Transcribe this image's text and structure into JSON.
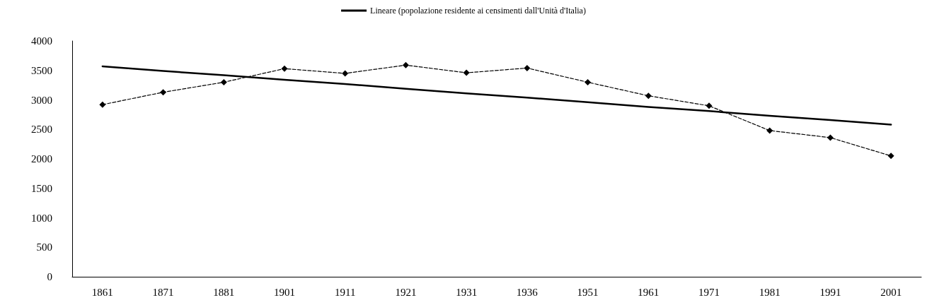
{
  "chart_data": {
    "type": "line",
    "categories": [
      "1861",
      "1871",
      "1881",
      "1901",
      "1911",
      "1921",
      "1931",
      "1936",
      "1951",
      "1961",
      "1971",
      "1981",
      "1991",
      "2001"
    ],
    "series": [
      {
        "color": "#000000",
        "marker": "diamond",
        "line_style": "dashed",
        "values": [
          2920,
          3130,
          3300,
          3530,
          3450,
          3590,
          3460,
          3540,
          3300,
          3070,
          2900,
          2480,
          2360,
          2050
        ]
      },
      {
        "name": "Lineare (popolazione residente ai censimenti dall'Unità d'Italia)",
        "color": "#000000",
        "marker": "none",
        "line_style": "solid",
        "values": [
          3570,
          3490,
          3420,
          3340,
          3270,
          3190,
          3110,
          3040,
          2960,
          2880,
          2810,
          2730,
          2660,
          2580
        ]
      }
    ],
    "ylim": [
      0,
      4000
    ],
    "yticks": [
      0,
      500,
      1000,
      1500,
      2000,
      2500,
      3000,
      3500,
      4000
    ],
    "grid": false,
    "legend": "top"
  }
}
